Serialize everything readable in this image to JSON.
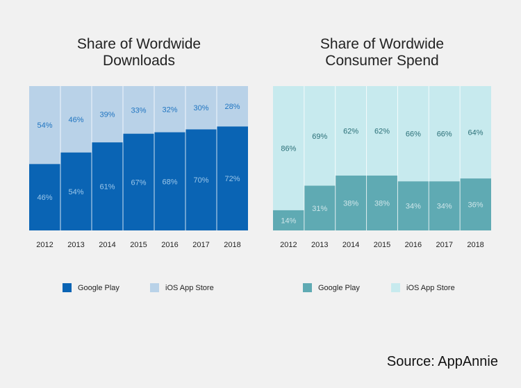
{
  "chart_data": [
    {
      "type": "bar",
      "stacked": true,
      "title": "Share of Wordwide Downloads",
      "categories": [
        "2012",
        "2013",
        "2014",
        "2015",
        "2016",
        "2017",
        "2018"
      ],
      "series": [
        {
          "name": "Google Play",
          "color": "#0a64b4",
          "label_color": "#9cc7ea",
          "values": [
            46,
            54,
            61,
            67,
            68,
            70,
            72
          ],
          "labels": [
            "46%",
            "54%",
            "61%",
            "67%",
            "68%",
            "70%",
            "72%"
          ]
        },
        {
          "name": "iOS App Store",
          "color": "#b9d2e8",
          "label_color": "#1f74c0",
          "values": [
            54,
            46,
            39,
            33,
            32,
            30,
            28
          ],
          "labels": [
            "54%",
            "46%",
            "39%",
            "33%",
            "32%",
            "30%",
            "28%"
          ]
        }
      ],
      "ylim": [
        0,
        100
      ],
      "legend": "bottom"
    },
    {
      "type": "bar",
      "stacked": true,
      "title": "Share of Wordwide Consumer Spend",
      "categories": [
        "2012",
        "2013",
        "2014",
        "2015",
        "2016",
        "2017",
        "2018"
      ],
      "series": [
        {
          "name": "Google Play",
          "color": "#5faab3",
          "label_color": "#cfe6ea",
          "values": [
            14,
            31,
            38,
            38,
            34,
            34,
            36
          ],
          "labels": [
            "14%",
            "31%",
            "38%",
            "38%",
            "34%",
            "34%",
            "36%"
          ]
        },
        {
          "name": "iOS App Store",
          "color": "#c7eaee",
          "label_color": "#2a6f77",
          "values": [
            86,
            69,
            62,
            62,
            66,
            66,
            64
          ],
          "labels": [
            "86%",
            "69%",
            "62%",
            "62%",
            "66%",
            "66%",
            "64%"
          ]
        }
      ],
      "ylim": [
        0,
        100
      ],
      "legend": "bottom"
    }
  ],
  "titles": {
    "left_line1": "Share of Wordwide",
    "left_line2": "Downloads",
    "right_line1": "Share of Wordwide",
    "right_line2": "Consumer Spend"
  },
  "legend_left": {
    "item1": "Google Play",
    "item2": "iOS App Store"
  },
  "legend_right": {
    "item1": "Google Play",
    "item2": "iOS App Store"
  },
  "source": "Source: AppAnnie"
}
